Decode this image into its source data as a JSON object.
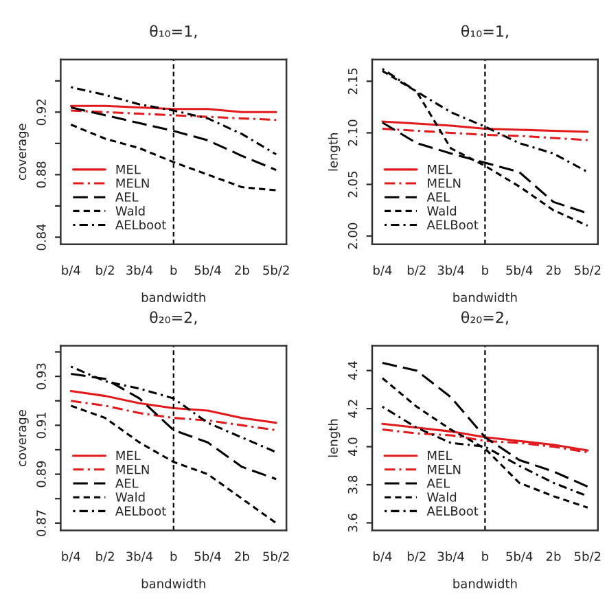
{
  "chart_data": [
    {
      "type": "line",
      "title": "θ₁₀=1,",
      "xlabel": "bandwidth",
      "ylabel": "coverage",
      "categories": [
        "b/4",
        "b/2",
        "3b/4",
        "b",
        "5b/4",
        "2b",
        "5b/2"
      ],
      "ylim": [
        0.8355,
        0.9536
      ],
      "yticks": [
        0.84,
        {
          "value": 0.86,
          "label": null
        },
        0.88,
        {
          "value": 0.9,
          "label": null
        },
        0.92,
        {
          "value": 0.94,
          "label": null
        }
      ],
      "grid": false,
      "legend": "bottom left",
      "marker": "none",
      "ref_lines": [
        {
          "axis": "x",
          "value": "b",
          "color": "#000000",
          "line_style": "dashed"
        }
      ],
      "series": [
        {
          "name": "MEL",
          "color": "#e31a1c",
          "line_style": "solid",
          "values": [
            0.924,
            0.924,
            0.923,
            0.922,
            0.922,
            0.92,
            0.92
          ]
        },
        {
          "name": "MELN",
          "color": "#e31a1c",
          "line_style": "dashdot",
          "values": [
            0.921,
            0.92,
            0.919,
            0.918,
            0.917,
            0.916,
            0.915
          ]
        },
        {
          "name": "AEL",
          "color": "#000000",
          "line_style": "longdash",
          "values": [
            0.923,
            0.918,
            0.913,
            0.908,
            0.902,
            0.892,
            0.883
          ]
        },
        {
          "name": "Wald",
          "color": "#000000",
          "line_style": "dashed",
          "values": [
            0.912,
            0.903,
            0.897,
            0.888,
            0.88,
            0.872,
            0.87
          ]
        },
        {
          "name": "AELboot",
          "color": "#000000",
          "line_style": "dotdash",
          "values": [
            0.936,
            0.931,
            0.925,
            0.921,
            0.916,
            0.906,
            0.893
          ]
        }
      ]
    },
    {
      "type": "line",
      "title": "θ₁₀=1,",
      "xlabel": "bandwidth",
      "ylabel": "length",
      "categories": [
        "b/4",
        "b/2",
        "3b/4",
        "b",
        "5b/4",
        "2b",
        "5b/2"
      ],
      "ylim": [
        1.992,
        2.171
      ],
      "yticks": [
        {
          "value": 2.0,
          "label": "2.00"
        },
        2.05,
        {
          "value": 2.1,
          "label": "2.10"
        },
        2.15
      ],
      "grid": false,
      "legend": "bottom left",
      "marker": "none",
      "ref_lines": [
        {
          "axis": "x",
          "value": "b",
          "color": "#000000",
          "line_style": "dashed"
        }
      ],
      "series": [
        {
          "name": "MEL",
          "color": "#e31a1c",
          "line_style": "solid",
          "values": [
            2.111,
            2.109,
            2.107,
            2.104,
            2.103,
            2.102,
            2.101
          ]
        },
        {
          "name": "MELN",
          "color": "#e31a1c",
          "line_style": "dashdot",
          "values": [
            2.104,
            2.102,
            2.1,
            2.098,
            2.097,
            2.095,
            2.093
          ]
        },
        {
          "name": "AEL",
          "color": "#000000",
          "line_style": "longdash",
          "values": [
            2.11,
            2.09,
            2.08,
            2.071,
            2.062,
            2.033,
            2.022
          ]
        },
        {
          "name": "Wald",
          "color": "#000000",
          "line_style": "dashed",
          "values": [
            2.16,
            2.14,
            2.085,
            2.068,
            2.048,
            2.025,
            2.01
          ]
        },
        {
          "name": "AELBoot",
          "color": "#000000",
          "line_style": "dotdash",
          "values": [
            2.162,
            2.14,
            2.12,
            2.106,
            2.09,
            2.08,
            2.062
          ]
        }
      ]
    },
    {
      "type": "line",
      "title": "θ₂₀=2,",
      "xlabel": "bandwidth",
      "ylabel": "coverage",
      "categories": [
        "b/4",
        "b/2",
        "3b/4",
        "b",
        "5b/4",
        "2b",
        "5b/2"
      ],
      "ylim": [
        0.867,
        0.9425
      ],
      "yticks": [
        0.87,
        {
          "value": 0.88,
          "label": null
        },
        0.89,
        {
          "value": 0.9,
          "label": null
        },
        0.91,
        {
          "value": 0.92,
          "label": null
        },
        0.93,
        {
          "value": 0.94,
          "label": null
        }
      ],
      "grid": false,
      "legend": "bottom left",
      "marker": "none",
      "ref_lines": [
        {
          "axis": "x",
          "value": "b",
          "color": "#000000",
          "line_style": "dashed"
        }
      ],
      "series": [
        {
          "name": "MEL",
          "color": "#e31a1c",
          "line_style": "solid",
          "values": [
            0.924,
            0.922,
            0.919,
            0.917,
            0.916,
            0.913,
            0.911
          ]
        },
        {
          "name": "MELN",
          "color": "#e31a1c",
          "line_style": "dashdot",
          "values": [
            0.92,
            0.918,
            0.915,
            0.913,
            0.912,
            0.91,
            0.908
          ]
        },
        {
          "name": "AEL",
          "color": "#000000",
          "line_style": "longdash",
          "values": [
            0.931,
            0.929,
            0.921,
            0.908,
            0.903,
            0.893,
            0.888
          ]
        },
        {
          "name": "Wald",
          "color": "#000000",
          "line_style": "dashed",
          "values": [
            0.918,
            0.913,
            0.903,
            0.895,
            0.89,
            0.88,
            0.87
          ]
        },
        {
          "name": "AELboot",
          "color": "#000000",
          "line_style": "dotdash",
          "values": [
            0.934,
            0.928,
            0.925,
            0.921,
            0.911,
            0.905,
            0.899
          ]
        }
      ]
    },
    {
      "type": "line",
      "title": "θ₂₀=2,",
      "xlabel": "bandwidth",
      "ylabel": "length",
      "categories": [
        "b/4",
        "b/2",
        "3b/4",
        "b",
        "5b/4",
        "2b",
        "5b/2"
      ],
      "ylim": [
        3.56,
        4.53
      ],
      "yticks": [
        3.6,
        3.8,
        {
          "value": 4.0,
          "label": "4.0"
        },
        4.2,
        4.4
      ],
      "grid": false,
      "legend": "bottom left",
      "marker": "none",
      "ref_lines": [
        {
          "axis": "x",
          "value": "b",
          "color": "#000000",
          "line_style": "dashed"
        }
      ],
      "series": [
        {
          "name": "MEL",
          "color": "#e31a1c",
          "line_style": "solid",
          "values": [
            4.12,
            4.1,
            4.08,
            4.05,
            4.03,
            4.01,
            3.98
          ]
        },
        {
          "name": "MELN",
          "color": "#e31a1c",
          "line_style": "dashdot",
          "values": [
            4.09,
            4.07,
            4.06,
            4.03,
            4.02,
            4.0,
            3.97
          ]
        },
        {
          "name": "AEL",
          "color": "#000000",
          "line_style": "longdash",
          "values": [
            4.44,
            4.4,
            4.26,
            4.05,
            3.93,
            3.87,
            3.79
          ]
        },
        {
          "name": "Wald",
          "color": "#000000",
          "line_style": "dashed",
          "values": [
            4.36,
            4.21,
            4.09,
            3.99,
            3.81,
            3.74,
            3.68
          ]
        },
        {
          "name": "AELBoot",
          "color": "#000000",
          "line_style": "dotdash",
          "values": [
            4.21,
            4.1,
            4.02,
            4.0,
            3.9,
            3.81,
            3.74
          ]
        }
      ]
    }
  ]
}
